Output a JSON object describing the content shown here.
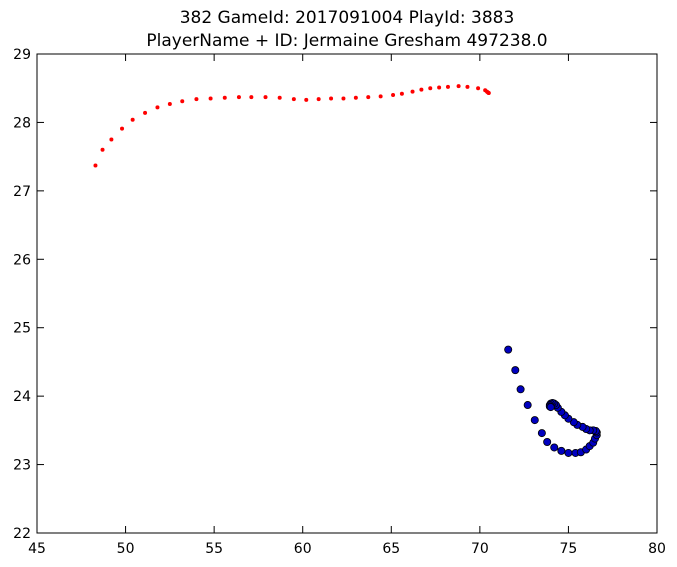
{
  "chart_data": {
    "type": "scatter",
    "title": "382 GameId: 2017091004 PlayId: 3883",
    "subtitle": "PlayerName + ID: Jermaine Gresham 497238.0",
    "xlabel": "",
    "ylabel": "",
    "xlim": [
      45,
      80
    ],
    "ylim": [
      22,
      29
    ],
    "xticks": [
      45,
      50,
      55,
      60,
      65,
      70,
      75,
      80
    ],
    "yticks": [
      22,
      23,
      24,
      25,
      26,
      27,
      28,
      29
    ],
    "grid": false,
    "legend": "none",
    "series": [
      {
        "color": "#ff0000",
        "marker": "small-dot",
        "points": [
          [
            48.3,
            27.37
          ],
          [
            48.7,
            27.6
          ],
          [
            49.2,
            27.75
          ],
          [
            49.8,
            27.91
          ],
          [
            50.4,
            28.04
          ],
          [
            51.1,
            28.14
          ],
          [
            51.8,
            28.22
          ],
          [
            52.5,
            28.27
          ],
          [
            53.2,
            28.31
          ],
          [
            54.0,
            28.34
          ],
          [
            54.8,
            28.35
          ],
          [
            55.6,
            28.36
          ],
          [
            56.4,
            28.37
          ],
          [
            57.1,
            28.37
          ],
          [
            57.9,
            28.37
          ],
          [
            58.7,
            28.36
          ],
          [
            59.5,
            28.34
          ],
          [
            60.2,
            28.33
          ],
          [
            60.9,
            28.34
          ],
          [
            61.6,
            28.35
          ],
          [
            62.3,
            28.35
          ],
          [
            63.0,
            28.36
          ],
          [
            63.7,
            28.37
          ],
          [
            64.4,
            28.38
          ],
          [
            65.1,
            28.4
          ],
          [
            65.6,
            28.42
          ],
          [
            66.2,
            28.45
          ],
          [
            66.7,
            28.48
          ],
          [
            67.2,
            28.5
          ],
          [
            67.7,
            28.51
          ],
          [
            68.2,
            28.52
          ],
          [
            68.8,
            28.53
          ],
          [
            69.3,
            28.52
          ],
          [
            69.9,
            28.5
          ],
          [
            70.3,
            28.47
          ],
          [
            70.4,
            28.45
          ],
          [
            70.45,
            28.44
          ],
          [
            70.5,
            28.43
          ],
          [
            70.5,
            28.43
          ]
        ]
      },
      {
        "color": "#0000bf",
        "marker": "circle",
        "points": [
          [
            71.6,
            24.68
          ],
          [
            72.0,
            24.38
          ],
          [
            72.3,
            24.1
          ],
          [
            72.7,
            23.87
          ],
          [
            73.1,
            23.65
          ],
          [
            73.5,
            23.46
          ],
          [
            73.8,
            23.33
          ],
          [
            74.2,
            23.25
          ],
          [
            74.6,
            23.2
          ],
          [
            75.0,
            23.17
          ],
          [
            75.4,
            23.17
          ],
          [
            75.7,
            23.18
          ],
          [
            76.0,
            23.22
          ],
          [
            76.2,
            23.27
          ],
          [
            76.4,
            23.32
          ],
          [
            76.5,
            23.38
          ],
          [
            76.6,
            23.43
          ],
          [
            76.6,
            23.47
          ],
          [
            76.55,
            23.49
          ],
          [
            76.4,
            23.5
          ],
          [
            76.2,
            23.5
          ],
          [
            76.0,
            23.52
          ],
          [
            75.8,
            23.55
          ],
          [
            75.5,
            23.58
          ],
          [
            75.3,
            23.62
          ],
          [
            75.0,
            23.67
          ],
          [
            74.8,
            23.72
          ],
          [
            74.6,
            23.77
          ],
          [
            74.4,
            23.83
          ],
          [
            74.3,
            23.87
          ],
          [
            74.2,
            23.89
          ],
          [
            74.1,
            23.9
          ],
          [
            74.0,
            23.89
          ],
          [
            73.95,
            23.87
          ],
          [
            73.95,
            23.85
          ],
          [
            74.0,
            23.84
          ]
        ]
      }
    ]
  }
}
